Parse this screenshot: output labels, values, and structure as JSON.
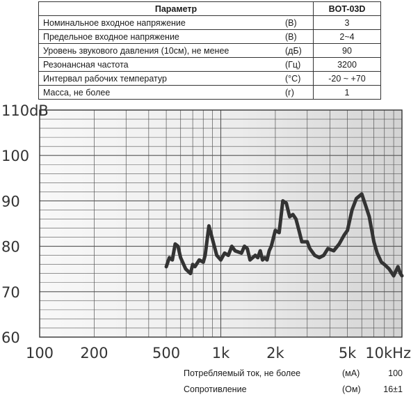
{
  "spec_table": {
    "header": {
      "param": "Параметр",
      "model": "BOT-03D"
    },
    "rows": [
      {
        "name": "Номинальное входное напряжение",
        "unit": "(В)",
        "value": "3"
      },
      {
        "name": "Предельное входное напряжение",
        "unit": "(В)",
        "value": "2~4"
      },
      {
        "name": "Уровень звукового давления (10см), не менее",
        "unit": "(дБ)",
        "value": "90"
      },
      {
        "name": "Резонансная частота",
        "unit": "(Гц)",
        "value": "3200"
      },
      {
        "name": "Интервал рабочих температур",
        "unit": "(°C)",
        "value": "-20 ~ +70"
      },
      {
        "name": "Масса, не более",
        "unit": "(г)",
        "value": "1"
      }
    ]
  },
  "extra_params": [
    {
      "name": "Потребляемый ток, не более",
      "unit": "(мА)",
      "value": "100"
    },
    {
      "name": "Сопротивление",
      "unit": "(Ом)",
      "value": "16±1"
    }
  ],
  "chart_data": {
    "type": "line",
    "x_scale": "log",
    "xlim": [
      100,
      10000
    ],
    "ylim": [
      60,
      110
    ],
    "x_ticks": [
      {
        "value": 100,
        "label": "100"
      },
      {
        "value": 200,
        "label": "200"
      },
      {
        "value": 500,
        "label": "500"
      },
      {
        "value": 1000,
        "label": "1k"
      },
      {
        "value": 2000,
        "label": "2k"
      },
      {
        "value": 5000,
        "label": "5k"
      },
      {
        "value": 10000,
        "label": "10kHz"
      }
    ],
    "y_ticks": [
      {
        "value": 110,
        "label": "110dB"
      },
      {
        "value": 100,
        "label": "100"
      },
      {
        "value": 90,
        "label": "90"
      },
      {
        "value": 80,
        "label": "80"
      },
      {
        "value": 70,
        "label": "70"
      },
      {
        "value": 60,
        "label": "60"
      }
    ],
    "grid": true,
    "colors": {
      "line": "#333333",
      "grid": "#555555",
      "bg_light": "#f7f7f7",
      "bg_dark": "#d9d9d9"
    },
    "series": [
      {
        "x": [
          500,
          520,
          540,
          560,
          580,
          600,
          640,
          680,
          700,
          720,
          760,
          800,
          820,
          860,
          900,
          950,
          1000,
          1050,
          1100,
          1150,
          1200,
          1300,
          1350,
          1400,
          1450,
          1500,
          1550,
          1600,
          1650,
          1700,
          1750,
          1800,
          1850,
          1900,
          2000,
          2100,
          2200,
          2300,
          2400,
          2500,
          2600,
          2700,
          2800,
          3000,
          3100,
          3300,
          3500,
          3700,
          3900,
          4200,
          4500,
          4800,
          5000,
          5300,
          5600,
          6000,
          6300,
          6600,
          7000,
          7300,
          7700,
          8000,
          8500,
          9000,
          9500,
          9800,
          10000
        ],
        "y": [
          75.5,
          77.5,
          77.0,
          80.5,
          80.0,
          77.5,
          75.0,
          74.0,
          76.0,
          75.5,
          77.0,
          76.5,
          78.0,
          84.5,
          81.5,
          78.0,
          77.0,
          78.5,
          78.0,
          80.0,
          79.0,
          78.5,
          80.0,
          79.5,
          77.0,
          77.5,
          78.0,
          77.5,
          79.0,
          77.0,
          77.5,
          77.0,
          79.0,
          80.0,
          83.5,
          83.0,
          90.0,
          89.5,
          86.5,
          87.0,
          86.0,
          83.5,
          81.0,
          81.0,
          79.5,
          78.0,
          77.5,
          78.0,
          79.5,
          79.0,
          80.5,
          82.5,
          83.5,
          88.0,
          90.5,
          91.5,
          89.0,
          86.5,
          81.0,
          78.5,
          76.5,
          76.0,
          75.0,
          73.5,
          75.5,
          74.0,
          73.5
        ]
      }
    ]
  }
}
